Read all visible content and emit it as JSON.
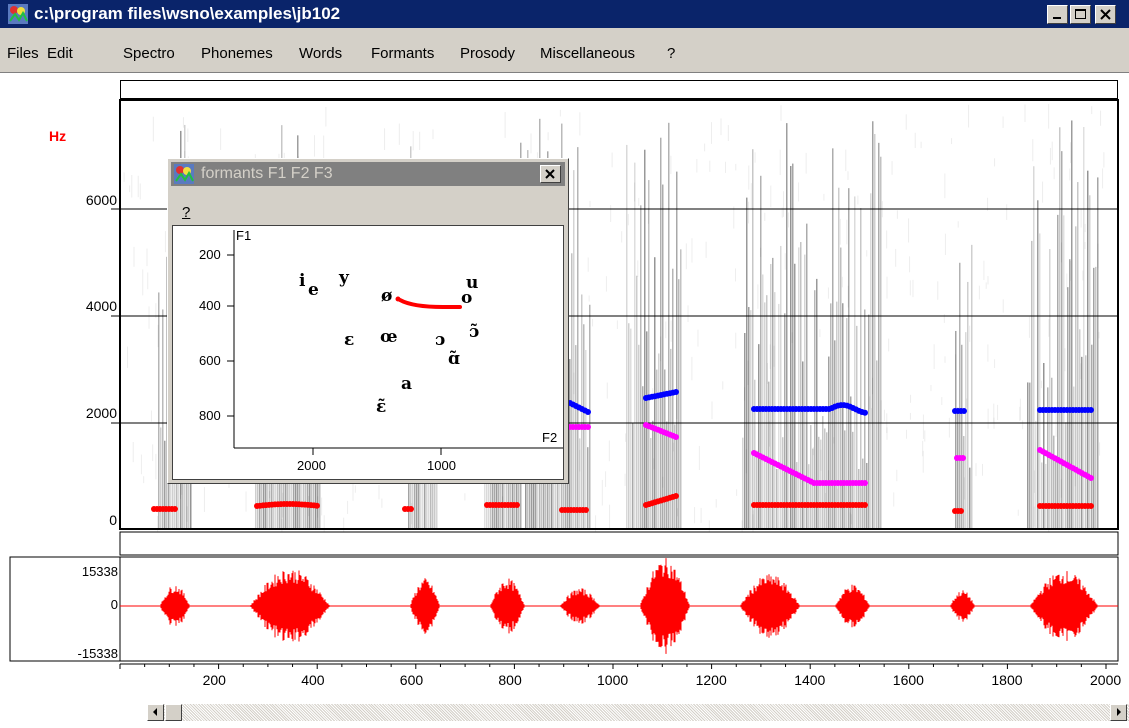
{
  "window": {
    "title": "c:\\program files\\wsno\\examples\\jb102"
  },
  "menu": [
    "Files",
    "Edit",
    "Spectro",
    "Phonemes",
    "Words",
    "Formants",
    "Prosody",
    "Miscellaneous",
    "?"
  ],
  "spectrogram": {
    "unit_label": "Hz",
    "y_ticks": [
      "6000",
      "4000",
      "2000",
      "0"
    ]
  },
  "waveform": {
    "y_ticks": [
      "15338",
      "0",
      "-15338"
    ]
  },
  "time_axis": {
    "ticks": [
      "200",
      "400",
      "600",
      "800",
      "1000",
      "1200",
      "1400",
      "1600",
      "1800",
      "2000"
    ]
  },
  "formants_window": {
    "title": "formants F1 F2 F3",
    "menu_label": "?",
    "y_axis_label": "F1",
    "x_axis_label": "F2",
    "y_ticks": [
      "200",
      "400",
      "600",
      "800"
    ],
    "x_ticks": [
      "2000",
      "1000"
    ],
    "vowels": [
      "i",
      "y",
      "u",
      "e",
      "ø",
      "o",
      "ɔ̃",
      "ɛ",
      "œ",
      "ɔ",
      "ɑ̃",
      "a",
      "ɛ̃"
    ]
  },
  "colors": {
    "f1": "#ff0000",
    "f2": "#ff00ff",
    "f3": "#0000ff",
    "waveform": "#ff0000",
    "unit_label": "#ff0000"
  }
}
